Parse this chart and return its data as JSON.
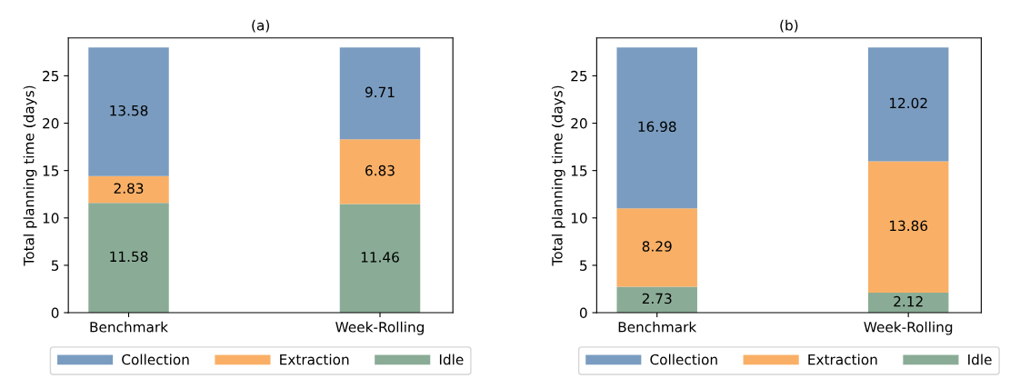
{
  "chart_data": [
    {
      "type": "bar",
      "title": "(a)",
      "ylabel": "Total planning time (days)",
      "categories": [
        "Benchmark",
        "Week-Rolling"
      ],
      "stacked": true,
      "ylim": [
        0,
        29
      ],
      "yticks": [
        0,
        5,
        10,
        15,
        20,
        25
      ],
      "grid": false,
      "legend": "bottom",
      "data_labels": true,
      "series": [
        {
          "name": "Idle",
          "color": "#8aac96",
          "values": [
            11.58,
            11.46
          ]
        },
        {
          "name": "Extraction",
          "color": "#f9b066",
          "values": [
            2.83,
            6.83
          ]
        },
        {
          "name": "Collection",
          "color": "#7a9cc0",
          "values": [
            13.58,
            9.71
          ]
        }
      ]
    },
    {
      "type": "bar",
      "title": "(b)",
      "ylabel": "Total planning time (days)",
      "categories": [
        "Benchmark",
        "Week-Rolling"
      ],
      "stacked": true,
      "ylim": [
        0,
        29
      ],
      "yticks": [
        0,
        5,
        10,
        15,
        20,
        25
      ],
      "grid": false,
      "legend": "bottom",
      "data_labels": true,
      "series": [
        {
          "name": "Idle",
          "color": "#8aac96",
          "values": [
            2.73,
            2.12
          ]
        },
        {
          "name": "Extraction",
          "color": "#f9b066",
          "values": [
            8.29,
            13.86
          ]
        },
        {
          "name": "Collection",
          "color": "#7a9cc0",
          "values": [
            16.98,
            12.02
          ]
        }
      ]
    }
  ]
}
